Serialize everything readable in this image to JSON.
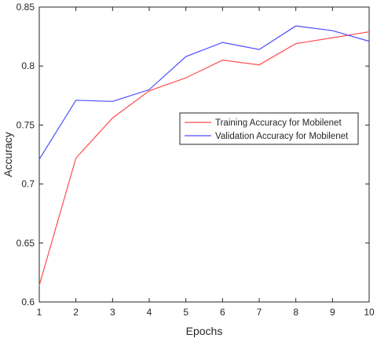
{
  "chart_data": {
    "type": "line",
    "xlabel": "Epochs",
    "ylabel": "Accuracy",
    "xlim": [
      1,
      10
    ],
    "ylim": [
      0.6,
      0.85
    ],
    "x_ticks": [
      1,
      2,
      3,
      4,
      5,
      6,
      7,
      8,
      9,
      10
    ],
    "y_ticks": [
      "0.6",
      "0.65",
      "0.7",
      "0.75",
      "0.8",
      "0.85"
    ],
    "grid": false,
    "legend_position": "center-right",
    "x": [
      1,
      2,
      3,
      4,
      5,
      6,
      7,
      8,
      9,
      10
    ],
    "series": [
      {
        "name": "Training Accuracy for Mobilenet",
        "color": "#ff4d4d",
        "values": [
          0.614,
          0.722,
          0.756,
          0.779,
          0.79,
          0.805,
          0.801,
          0.819,
          0.824,
          0.829
        ]
      },
      {
        "name": "Validation Accuracy for Mobilenet",
        "color": "#4d4dff",
        "values": [
          0.721,
          0.771,
          0.77,
          0.78,
          0.808,
          0.82,
          0.814,
          0.834,
          0.83,
          0.821
        ]
      }
    ]
  }
}
